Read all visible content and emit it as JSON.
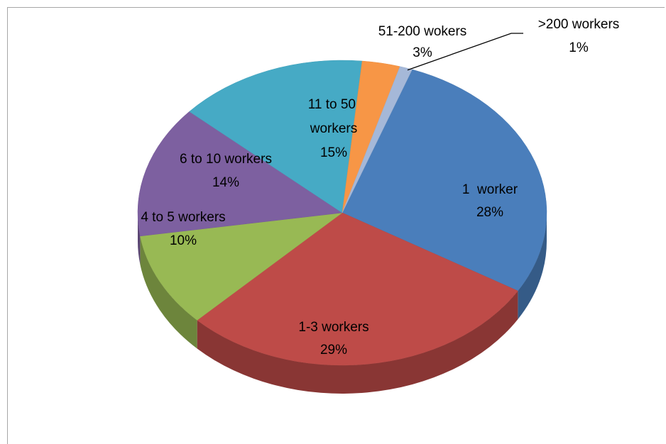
{
  "chart_data": {
    "type": "pie",
    "categories": [
      "1  worker",
      "1-3 workers",
      "4 to 5 workers",
      "6 to 10 workers",
      "11 to 50 workers",
      "51-200 wokers",
      ">200 workers"
    ],
    "values": [
      28,
      29,
      10,
      14,
      15,
      3,
      1
    ],
    "value_labels": [
      "28%",
      "29%",
      "10%",
      "14%",
      "15%",
      "3%",
      "1%"
    ],
    "colors": [
      "#4a7ebb",
      "#be4b48",
      "#98b954",
      "#7d60a0",
      "#46aac5",
      "#f79646",
      "#a5b8d8"
    ]
  }
}
